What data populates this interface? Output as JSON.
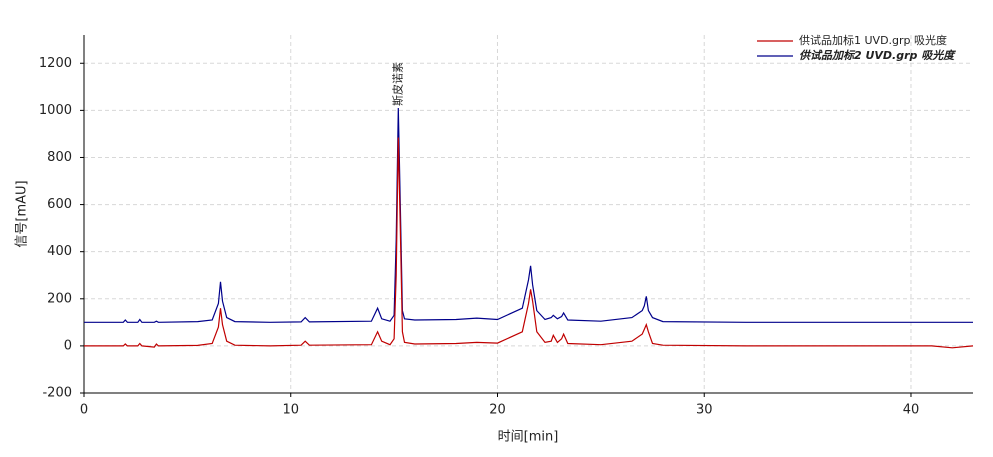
{
  "chart_data": {
    "type": "line",
    "xlabel": "时间[min]",
    "ylabel": "信号[mAU]",
    "xlim": [
      0,
      43
    ],
    "ylim": [
      -200,
      1320
    ],
    "xticks": [
      0,
      10,
      20,
      30,
      40
    ],
    "yticks": [
      -200,
      0,
      200,
      400,
      600,
      800,
      1000,
      1200
    ],
    "grid": true,
    "legend": "upper right",
    "annotations": [
      {
        "text": "斯皮诺素",
        "x": 15.2
      }
    ],
    "x": [
      0,
      1.9,
      2.0,
      2.1,
      2.6,
      2.7,
      2.8,
      3.4,
      3.5,
      3.6,
      5.5,
      6.2,
      6.5,
      6.6,
      6.7,
      6.9,
      7.3,
      9,
      10.5,
      10.7,
      10.9,
      13.9,
      14.2,
      14.4,
      14.8,
      15.0,
      15.1,
      15.2,
      15.3,
      15.4,
      15.5,
      16,
      18,
      19,
      20,
      21.2,
      21.5,
      21.6,
      21.7,
      21.9,
      22.3,
      22.6,
      22.7,
      22.9,
      23.1,
      23.2,
      23.4,
      25,
      26.5,
      27.0,
      27.1,
      27.2,
      27.3,
      27.5,
      28,
      32,
      38,
      41,
      42,
      43
    ],
    "series": [
      {
        "name": "供试品加标1 UVD.grp 吸光度",
        "color": "#c00000",
        "values": [
          0,
          0,
          8,
          0,
          0,
          10,
          0,
          -5,
          8,
          0,
          2,
          10,
          80,
          160,
          90,
          20,
          3,
          0,
          3,
          20,
          3,
          5,
          60,
          20,
          5,
          30,
          300,
          885,
          500,
          60,
          15,
          8,
          10,
          15,
          12,
          60,
          180,
          240,
          190,
          60,
          15,
          20,
          45,
          15,
          30,
          50,
          10,
          5,
          20,
          50,
          70,
          90,
          60,
          10,
          3,
          0,
          0,
          0,
          -8,
          0
        ]
      },
      {
        "name": "供试品加标2 UVD.grp 吸光度",
        "color": "#00008b",
        "values": [
          100,
          100,
          110,
          100,
          100,
          112,
          100,
          100,
          105,
          100,
          103,
          110,
          180,
          272,
          190,
          120,
          103,
          100,
          102,
          120,
          102,
          105,
          160,
          115,
          105,
          130,
          450,
          1010,
          600,
          150,
          115,
          110,
          112,
          118,
          112,
          160,
          280,
          340,
          260,
          150,
          112,
          120,
          130,
          115,
          125,
          140,
          110,
          105,
          120,
          150,
          170,
          210,
          150,
          120,
          103,
          100,
          100,
          100,
          100,
          100
        ]
      }
    ]
  }
}
